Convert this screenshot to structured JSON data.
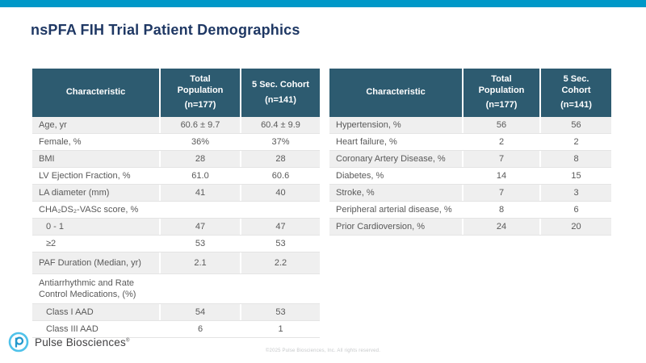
{
  "slide": {
    "title": "nsPFA FIH Trial Patient Demographics",
    "logo_text": "Pulse Biosciences",
    "logo_reg": "®",
    "footer": "©2025 Pulse Biosciences, Inc. All rights reserved."
  },
  "colors": {
    "accent": "#0098c8",
    "header_bg": "#2d5b70",
    "title": "#1f3864",
    "body_text": "#595959",
    "row_alt": "#efefef",
    "footer_text": "#c6c8ca",
    "logo_ring": "#4fc2ea",
    "logo_mark": "#2398cc"
  },
  "tables": [
    {
      "name": "patient-demographics",
      "columns": [
        {
          "label": "Characteristic",
          "sub": ""
        },
        {
          "label": "Total\nPopulation",
          "sub": "(n=177)"
        },
        {
          "label": "5 Sec. Cohort",
          "sub": "(n=141)"
        }
      ],
      "rows": [
        {
          "label": "Age, yr",
          "values": [
            "60.6 ± 9.7",
            "60.4 ± 9.9"
          ]
        },
        {
          "label": "Female, %",
          "values": [
            "36%",
            "37%"
          ]
        },
        {
          "label": "BMI",
          "values": [
            "28",
            "28"
          ]
        },
        {
          "label": "LV Ejection Fraction, %",
          "values": [
            "61.0",
            "60.6"
          ]
        },
        {
          "label": "LA diameter (mm)",
          "values": [
            "41",
            "40"
          ]
        },
        {
          "label": "CHA₂DS₂-VASc score, %",
          "values": [
            "",
            ""
          ]
        },
        {
          "label": "0 - 1",
          "values": [
            "47",
            "47"
          ],
          "indent": true
        },
        {
          "label": "≥2",
          "values": [
            "53",
            "53"
          ],
          "indent": true
        },
        {
          "label": "PAF Duration (Median, yr)",
          "values": [
            "2.1",
            "2.2"
          ],
          "size": "tall"
        },
        {
          "label": "Antiarrhythmic and Rate Control Medications, (%)",
          "values": [
            "",
            ""
          ],
          "size": "xtall"
        },
        {
          "label": "Class I AAD",
          "values": [
            "54",
            "53"
          ],
          "indent": true
        },
        {
          "label": "Class III AAD",
          "values": [
            "6",
            "1"
          ],
          "indent": true
        }
      ]
    },
    {
      "name": "comorbidities",
      "columns": [
        {
          "label": "Characteristic",
          "sub": ""
        },
        {
          "label": "Total\nPopulation",
          "sub": "(n=177)"
        },
        {
          "label": "5 Sec.\nCohort",
          "sub": "(n=141)"
        }
      ],
      "rows": [
        {
          "label": "Hypertension, %",
          "values": [
            "56",
            "56"
          ]
        },
        {
          "label": "Heart failure, %",
          "values": [
            "2",
            "2"
          ]
        },
        {
          "label": "Coronary Artery Disease, %",
          "values": [
            "7",
            "8"
          ]
        },
        {
          "label": "Diabetes, %",
          "values": [
            "14",
            "15"
          ]
        },
        {
          "label": "Stroke, %",
          "values": [
            "7",
            "3"
          ]
        },
        {
          "label": "Peripheral arterial disease, %",
          "values": [
            "8",
            "6"
          ]
        },
        {
          "label": "Prior Cardioversion, %",
          "values": [
            "24",
            "20"
          ]
        }
      ]
    }
  ]
}
